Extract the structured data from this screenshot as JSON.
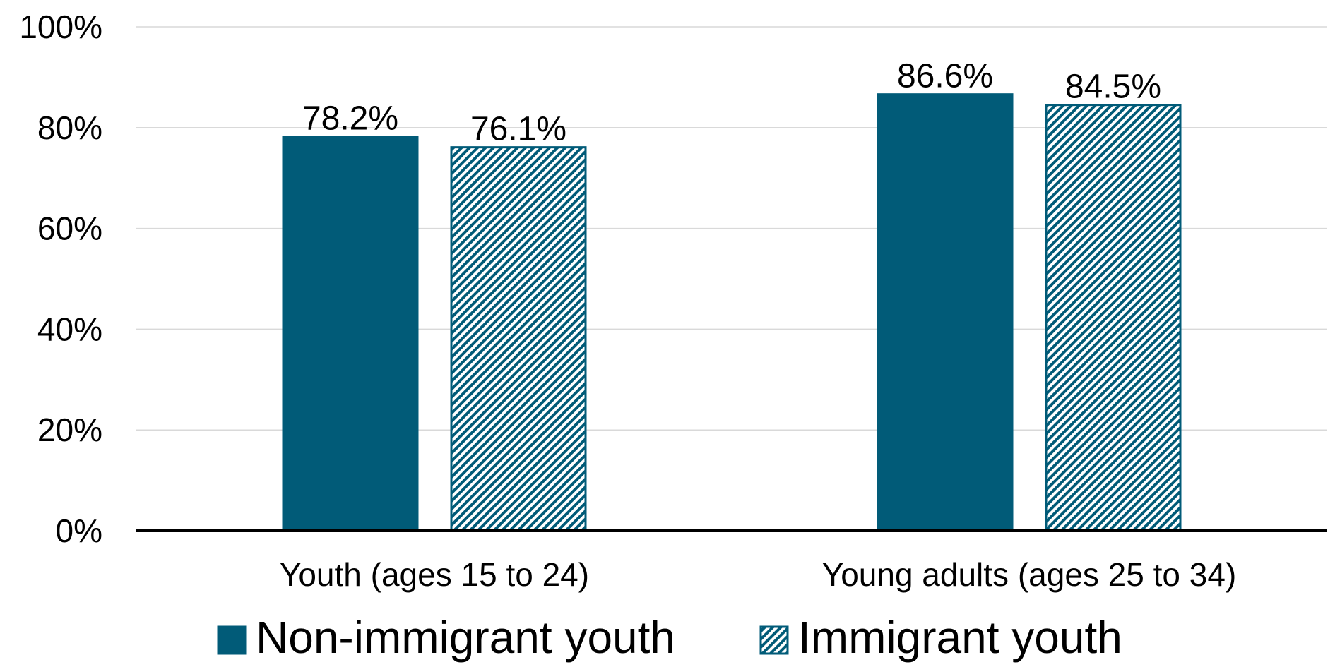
{
  "chart_data": {
    "type": "bar",
    "title": "",
    "xlabel": "",
    "ylabel": "",
    "ylim": [
      0,
      100
    ],
    "yticks": [
      "0%",
      "20%",
      "40%",
      "60%",
      "80%",
      "100%"
    ],
    "ytick_values": [
      0,
      20,
      40,
      60,
      80,
      100
    ],
    "categories": [
      "Youth (ages 15 to 24)",
      "Young adults (ages 25 to 34)"
    ],
    "series": [
      {
        "name": "Non-immigrant youth",
        "values": [
          78.2,
          86.6
        ],
        "labels": [
          "78.2%",
          "86.6%"
        ],
        "style": "solid"
      },
      {
        "name": "Immigrant youth",
        "values": [
          76.1,
          84.5
        ],
        "labels": [
          "76.1%",
          "84.5%"
        ],
        "style": "hatched"
      }
    ],
    "grid": true,
    "legend": "bottom",
    "colors": {
      "primary": "#015b78",
      "hatch_bg": "#ffffff",
      "grid": "#d9d9d9",
      "axis": "#000000"
    }
  }
}
